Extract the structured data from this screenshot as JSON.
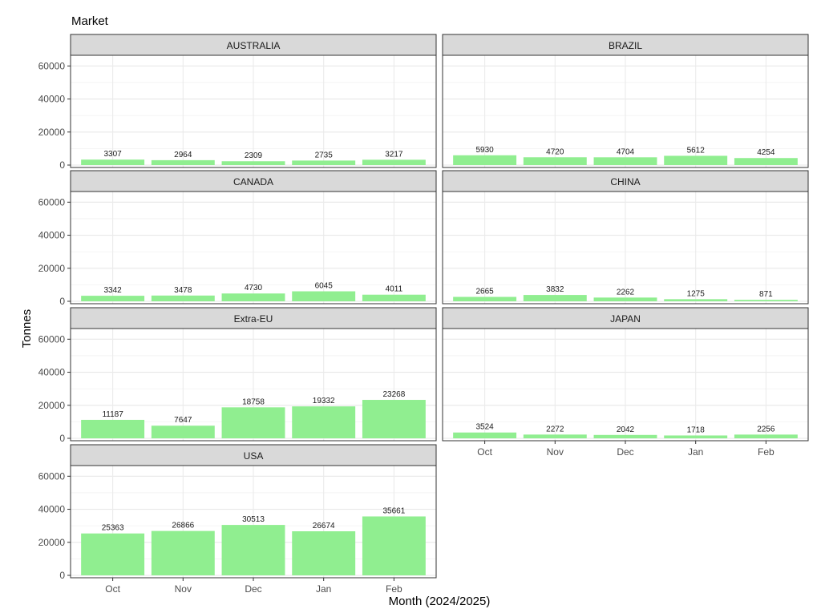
{
  "chart_data": {
    "type": "bar",
    "title": "Market",
    "xlabel": "Month (2024/2025)",
    "ylabel": "Tonnes",
    "categories": [
      "Oct",
      "Nov",
      "Dec",
      "Jan",
      "Feb"
    ],
    "ylim": [
      0,
      65000
    ],
    "yticks": [
      0,
      20000,
      40000,
      60000
    ],
    "grid": true,
    "bar_color": "#90ee90",
    "strip_color": "#d9d9d9",
    "facets": [
      {
        "name": "AUSTRALIA",
        "values": [
          3307,
          2964,
          2309,
          2735,
          3217
        ]
      },
      {
        "name": "BRAZIL",
        "values": [
          5930,
          4720,
          4704,
          5612,
          4254
        ]
      },
      {
        "name": "CANADA",
        "values": [
          3342,
          3478,
          4730,
          6045,
          4011
        ]
      },
      {
        "name": "CHINA",
        "values": [
          2665,
          3832,
          2262,
          1275,
          871
        ]
      },
      {
        "name": "Extra-EU",
        "values": [
          11187,
          7647,
          18758,
          19332,
          23268
        ]
      },
      {
        "name": "JAPAN",
        "values": [
          3524,
          2272,
          2042,
          1718,
          2256
        ]
      },
      {
        "name": "USA",
        "values": [
          25363,
          26866,
          30513,
          26674,
          35661
        ]
      }
    ]
  }
}
